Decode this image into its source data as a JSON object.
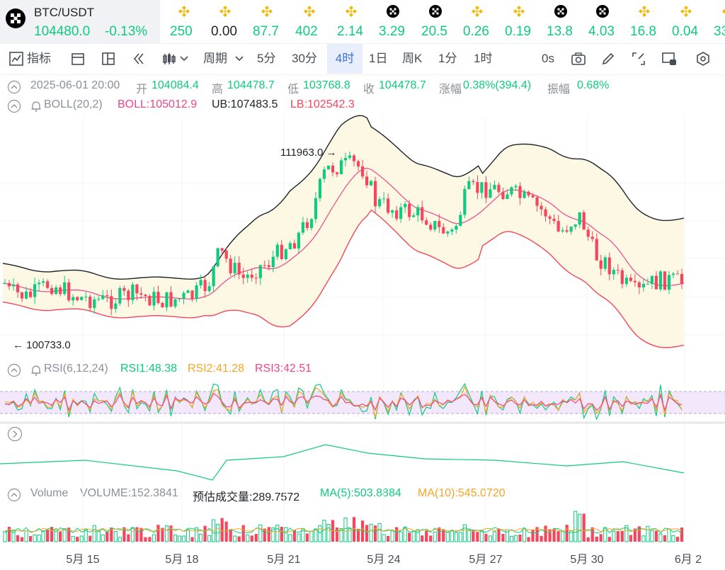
{
  "pair": {
    "name": "BTC/USDT",
    "price": "104480.0",
    "change": "-0.13%"
  },
  "tickers": [
    {
      "icon": "bnb-icon",
      "value": "250"
    },
    {
      "icon": "bnb-icon",
      "value": "0.00"
    },
    {
      "icon": "bnb-icon",
      "value": "87.7"
    },
    {
      "icon": "bnb-icon",
      "value": "402"
    },
    {
      "icon": "bnb-icon",
      "value": "2.14"
    },
    {
      "icon": "okx-icon",
      "value": "3.29"
    },
    {
      "icon": "okx-icon",
      "value": "20.5"
    },
    {
      "icon": "bnb-icon",
      "value": "0.26"
    },
    {
      "icon": "bnb-icon",
      "value": "0.19"
    },
    {
      "icon": "okx-icon",
      "value": "13.8"
    },
    {
      "icon": "okx-icon",
      "value": "4.03"
    },
    {
      "icon": "bnb-icon",
      "value": "16.8"
    },
    {
      "icon": "bnb-icon",
      "value": "0.04"
    },
    {
      "icon": "bnb-icon",
      "value": "33"
    }
  ],
  "toolbar": {
    "indicators": "指标",
    "period": "周期",
    "intervals": [
      "5分",
      "30分",
      "4时",
      "1日",
      "周K",
      "1分",
      "1时"
    ],
    "active_interval": "4时",
    "countdown": "0s"
  },
  "ohlc": {
    "datetime": "2025-06-01 20:00",
    "open_label": "开",
    "open": "104084.4",
    "high_label": "高",
    "high": "104478.7",
    "low_label": "低",
    "low": "103768.8",
    "close_label": "收",
    "close": "104478.7",
    "change_label": "涨幅",
    "change": "0.38%(394.4)",
    "amp_label": "振幅",
    "amp": "0.68%"
  },
  "boll": {
    "name": "BOLL(20,2)",
    "mid": "BOLL:105012.9",
    "ub": "UB:107483.5",
    "lb": "LB:102542.3"
  },
  "rsi": {
    "name": "RSI(6,12,24)",
    "rsi1": "RSI1:48.38",
    "rsi2": "RSI2:41.28",
    "rsi3": "RSI3:42.51"
  },
  "volume": {
    "name": "Volume",
    "value": "VOLUME:152.3841",
    "est": "预估成交量:289.7572",
    "ma5": "MA(5):503.8884",
    "ma10": "MA(10):545.0720"
  },
  "colors": {
    "up": "#0ecb81",
    "down": "#f6465d",
    "mid": "#f0458a",
    "band": "#1e2329",
    "fill": "#fdf8e4",
    "rsi_zone": "#f3e8fb"
  },
  "chart_data": {
    "type": "candlestick",
    "x_ticks": [
      "5月 15",
      "5月 18",
      "5月 21",
      "5月 24",
      "5月 27",
      "5月 30",
      "6月 2"
    ],
    "annotations": {
      "high": "111963.0",
      "low": "100733.0"
    },
    "indicators": [
      "BOLL(20,2)",
      "RSI(6,12,24)",
      "Volume"
    ],
    "rsi_levels": [
      30,
      70
    ]
  }
}
